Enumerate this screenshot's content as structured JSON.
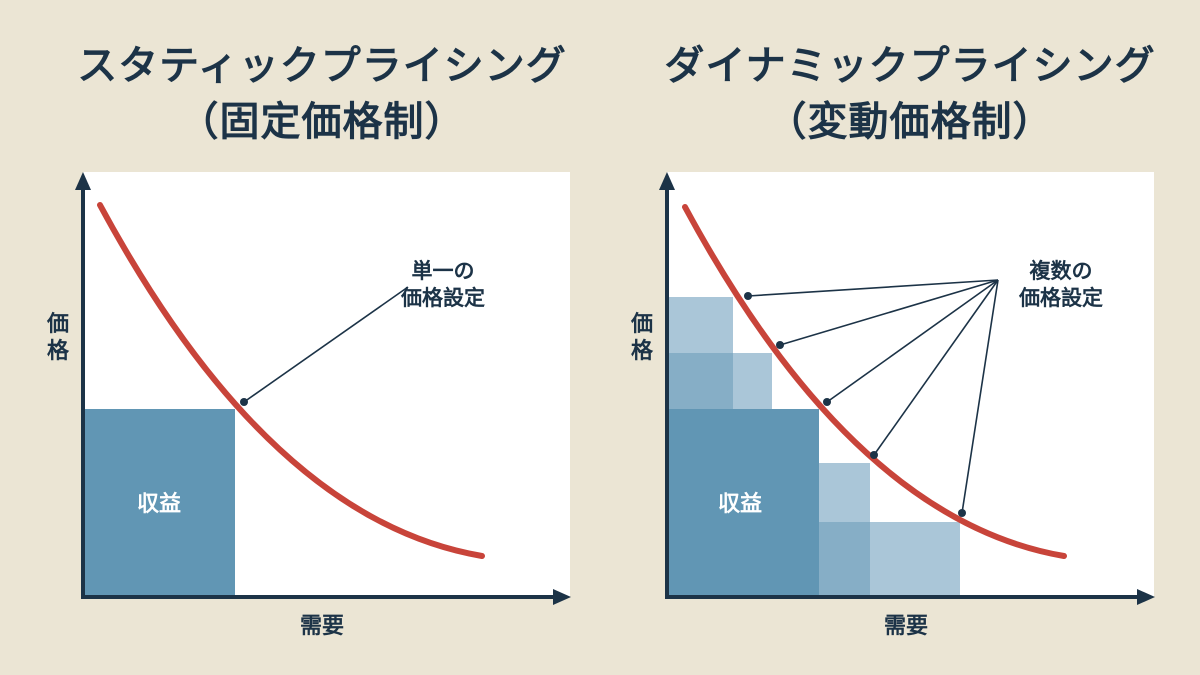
{
  "left_panel": {
    "title_line1": "スタティックプライシング",
    "title_line2": "（固定価格制）",
    "y_axis_label": [
      "価",
      "格"
    ],
    "x_axis_label": "需要",
    "revenue_label": "収益",
    "callout_line1": "単一の",
    "callout_line2": "価格設定"
  },
  "right_panel": {
    "title_line1": "ダイナミックプライシング",
    "title_line2": "（変動価格制）",
    "y_axis_label": [
      "価",
      "格"
    ],
    "x_axis_label": "需要",
    "revenue_label": "収益",
    "callout_line1": "複数の",
    "callout_line2": "価格設定"
  },
  "colors": {
    "background": "#ebe5d4",
    "text": "#1c3347",
    "curve": "#c8443a",
    "revenue_dark": "#6196b4",
    "revenue_mid": "#86aec6",
    "revenue_light": "#aac6d8",
    "axis": "#1c3347"
  }
}
